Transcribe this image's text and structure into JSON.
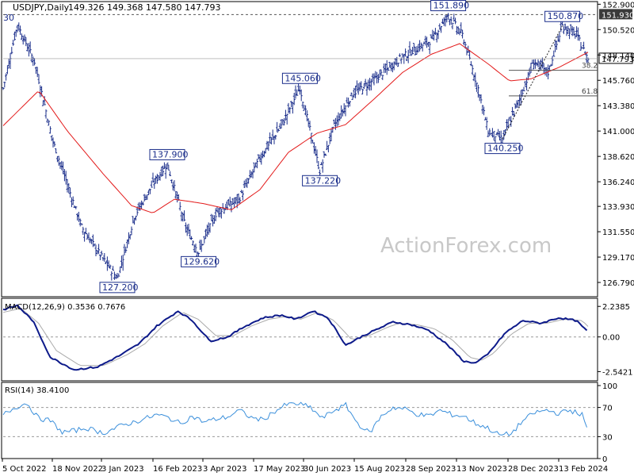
{
  "header": {
    "symbol_label": "USDJPY,Daily",
    "ohlc": "149.326 149.368 147.580 147.793",
    "left_cut_label": "30"
  },
  "watermark": "ActionForex.com",
  "colors": {
    "bars": "#1a2d8a",
    "ma": "#e31a1a",
    "macd": "#0d1a8a",
    "signal": "#aaaaaa",
    "rsi": "#3a8fdb",
    "grid": "#999999"
  },
  "chart_data": [
    {
      "type": "bar",
      "panel": "price",
      "title": "USDJPY,Daily",
      "ohlc_readout": [
        "149.326",
        "149.368",
        "147.580",
        "147.793"
      ],
      "y_ticks": [
        "152.900",
        "150.520",
        "148.140",
        "145.760",
        "143.380",
        "141.000",
        "138.620",
        "136.240",
        "133.930",
        "131.550",
        "129.170",
        "126.790"
      ],
      "y_range": [
        125.6,
        153.0
      ],
      "x_ticks": [
        "5 Oct 2022",
        "18 Nov 2022",
        "3 Jan 2023",
        "16 Feb 2023",
        "3 Apr 2023",
        "17 May 2023",
        "30 Jun 2023",
        "15 Aug 2023",
        "28 Sep 2023",
        "13 Nov 2023",
        "28 Dec 2023",
        "13 Feb 2024"
      ],
      "key_points": [
        {
          "i": 0,
          "v": 145.0
        },
        {
          "i": 10,
          "v": 151.0
        },
        {
          "i": 22,
          "v": 147.5
        },
        {
          "i": 35,
          "v": 140.0
        },
        {
          "i": 55,
          "v": 132.0
        },
        {
          "i": 70,
          "v": 129.0
        },
        {
          "i": 80,
          "v": 127.2
        },
        {
          "i": 92,
          "v": 133.0
        },
        {
          "i": 105,
          "v": 136.0
        },
        {
          "i": 115,
          "v": 137.9
        },
        {
          "i": 128,
          "v": 132.0
        },
        {
          "i": 137,
          "v": 129.62
        },
        {
          "i": 150,
          "v": 133.5
        },
        {
          "i": 165,
          "v": 134.5
        },
        {
          "i": 180,
          "v": 138.5
        },
        {
          "i": 195,
          "v": 141.5
        },
        {
          "i": 208,
          "v": 145.06
        },
        {
          "i": 222,
          "v": 137.22
        },
        {
          "i": 232,
          "v": 141.5
        },
        {
          "i": 245,
          "v": 144.5
        },
        {
          "i": 262,
          "v": 146.0
        },
        {
          "i": 280,
          "v": 148.0
        },
        {
          "i": 300,
          "v": 149.5
        },
        {
          "i": 312,
          "v": 151.89
        },
        {
          "i": 322,
          "v": 150.0
        },
        {
          "i": 333,
          "v": 145.0
        },
        {
          "i": 340,
          "v": 141.0
        },
        {
          "i": 350,
          "v": 140.25
        },
        {
          "i": 362,
          "v": 144.0
        },
        {
          "i": 372,
          "v": 147.5
        },
        {
          "i": 382,
          "v": 146.5
        },
        {
          "i": 392,
          "v": 150.87
        },
        {
          "i": 402,
          "v": 150.0
        },
        {
          "i": 410,
          "v": 147.79
        }
      ],
      "ma_points": [
        {
          "i": 0,
          "v": 141.5
        },
        {
          "i": 25,
          "v": 144.8
        },
        {
          "i": 45,
          "v": 141.0
        },
        {
          "i": 70,
          "v": 137.0
        },
        {
          "i": 90,
          "v": 134.0
        },
        {
          "i": 105,
          "v": 133.3
        },
        {
          "i": 120,
          "v": 134.6
        },
        {
          "i": 140,
          "v": 134.2
        },
        {
          "i": 160,
          "v": 133.6
        },
        {
          "i": 180,
          "v": 135.5
        },
        {
          "i": 200,
          "v": 139.0
        },
        {
          "i": 220,
          "v": 140.8
        },
        {
          "i": 240,
          "v": 141.6
        },
        {
          "i": 260,
          "v": 144.0
        },
        {
          "i": 280,
          "v": 146.5
        },
        {
          "i": 300,
          "v": 148.2
        },
        {
          "i": 320,
          "v": 149.2
        },
        {
          "i": 340,
          "v": 147.3
        },
        {
          "i": 355,
          "v": 145.7
        },
        {
          "i": 370,
          "v": 145.9
        },
        {
          "i": 390,
          "v": 147.0
        },
        {
          "i": 410,
          "v": 148.4
        }
      ],
      "labels": [
        "151.890",
        "150.870",
        "145.060",
        "140.250",
        "137.900",
        "137.220",
        "129.620",
        "127.200"
      ],
      "last_price": "147.793",
      "high_line": "151.930",
      "fib_levels": [
        {
          "name": "38.2",
          "value": 146.7
        },
        {
          "name": "61.8",
          "value": 144.3
        }
      ],
      "trendline": [
        {
          "i": 350,
          "v": 140.25
        },
        {
          "i": 392,
          "v": 150.87
        }
      ]
    },
    {
      "type": "line",
      "panel": "macd",
      "title": "MACD(12,26,9) 0.3536 0.7676",
      "y_ticks": [
        "2.2385",
        "0.00",
        "-2.5421"
      ],
      "y_range": [
        -3.1,
        2.6
      ],
      "series": [
        {
          "values": [
            {
              "i": 0,
              "v": 2.0
            },
            {
              "i": 12,
              "v": 2.3
            },
            {
              "i": 25,
              "v": 1.2
            },
            {
              "i": 40,
              "v": -1.5
            },
            {
              "i": 60,
              "v": -2.4
            },
            {
              "i": 80,
              "v": -2.2
            },
            {
              "i": 100,
              "v": -1.3
            },
            {
              "i": 115,
              "v": -0.5
            },
            {
              "i": 130,
              "v": 0.8
            },
            {
              "i": 148,
              "v": 1.9
            },
            {
              "i": 160,
              "v": 1.2
            },
            {
              "i": 175,
              "v": -0.3
            },
            {
              "i": 190,
              "v": 0.0
            },
            {
              "i": 205,
              "v": 0.8
            },
            {
              "i": 220,
              "v": 1.4
            },
            {
              "i": 235,
              "v": 1.6
            },
            {
              "i": 248,
              "v": 1.3
            },
            {
              "i": 262,
              "v": 1.9
            },
            {
              "i": 275,
              "v": 1.4
            },
            {
              "i": 290,
              "v": -0.6
            },
            {
              "i": 305,
              "v": 0.1
            },
            {
              "i": 320,
              "v": 0.7
            },
            {
              "i": 330,
              "v": 1.1
            },
            {
              "i": 345,
              "v": 0.9
            },
            {
              "i": 360,
              "v": 0.5
            },
            {
              "i": 375,
              "v": -0.5
            },
            {
              "i": 390,
              "v": -1.8
            },
            {
              "i": 400,
              "v": -1.9
            },
            {
              "i": 410,
              "v": -1.3
            },
            {
              "i": 425,
              "v": 0.3
            },
            {
              "i": 440,
              "v": 1.2
            },
            {
              "i": 455,
              "v": 1.0
            },
            {
              "i": 470,
              "v": 1.4
            },
            {
              "i": 485,
              "v": 1.2
            },
            {
              "i": 495,
              "v": 0.35
            }
          ]
        },
        {
          "values": [
            {
              "i": 0,
              "v": 1.8
            },
            {
              "i": 15,
              "v": 2.1
            },
            {
              "i": 30,
              "v": 1.0
            },
            {
              "i": 45,
              "v": -1.0
            },
            {
              "i": 65,
              "v": -2.1
            },
            {
              "i": 85,
              "v": -2.1
            },
            {
              "i": 105,
              "v": -1.3
            },
            {
              "i": 120,
              "v": -0.5
            },
            {
              "i": 135,
              "v": 0.8
            },
            {
              "i": 152,
              "v": 1.8
            },
            {
              "i": 165,
              "v": 1.3
            },
            {
              "i": 180,
              "v": 0.1
            },
            {
              "i": 195,
              "v": 0.1
            },
            {
              "i": 210,
              "v": 0.8
            },
            {
              "i": 225,
              "v": 1.3
            },
            {
              "i": 240,
              "v": 1.5
            },
            {
              "i": 252,
              "v": 1.3
            },
            {
              "i": 266,
              "v": 1.8
            },
            {
              "i": 280,
              "v": 1.2
            },
            {
              "i": 295,
              "v": -0.2
            },
            {
              "i": 310,
              "v": 0.1
            },
            {
              "i": 325,
              "v": 0.7
            },
            {
              "i": 335,
              "v": 1.0
            },
            {
              "i": 350,
              "v": 0.9
            },
            {
              "i": 365,
              "v": 0.6
            },
            {
              "i": 380,
              "v": -0.2
            },
            {
              "i": 395,
              "v": -1.5
            },
            {
              "i": 405,
              "v": -1.7
            },
            {
              "i": 415,
              "v": -1.2
            },
            {
              "i": 430,
              "v": 0.2
            },
            {
              "i": 445,
              "v": 1.0
            },
            {
              "i": 460,
              "v": 1.0
            },
            {
              "i": 475,
              "v": 1.3
            },
            {
              "i": 490,
              "v": 1.2
            },
            {
              "i": 495,
              "v": 0.77
            }
          ]
        }
      ]
    },
    {
      "type": "line",
      "panel": "rsi",
      "title": "RSI(14) 38.4100",
      "y_ticks": [
        "100",
        "70",
        "30",
        "0"
      ],
      "y_range": [
        0,
        100
      ],
      "levels": [
        70,
        30
      ],
      "series": [
        {
          "values": [
            {
              "i": 0,
              "v": 60
            },
            {
              "i": 10,
              "v": 70
            },
            {
              "i": 20,
              "v": 76
            },
            {
              "i": 30,
              "v": 55
            },
            {
              "i": 40,
              "v": 52
            },
            {
              "i": 50,
              "v": 36
            },
            {
              "i": 60,
              "v": 38
            },
            {
              "i": 70,
              "v": 42
            },
            {
              "i": 85,
              "v": 35
            },
            {
              "i": 100,
              "v": 45
            },
            {
              "i": 115,
              "v": 52
            },
            {
              "i": 130,
              "v": 60
            },
            {
              "i": 140,
              "v": 56
            },
            {
              "i": 150,
              "v": 48
            },
            {
              "i": 160,
              "v": 58
            },
            {
              "i": 170,
              "v": 50
            },
            {
              "i": 180,
              "v": 54
            },
            {
              "i": 190,
              "v": 57
            },
            {
              "i": 200,
              "v": 66
            },
            {
              "i": 210,
              "v": 56
            },
            {
              "i": 220,
              "v": 53
            },
            {
              "i": 230,
              "v": 65
            },
            {
              "i": 240,
              "v": 74
            },
            {
              "i": 250,
              "v": 75
            },
            {
              "i": 260,
              "v": 70
            },
            {
              "i": 270,
              "v": 55
            },
            {
              "i": 280,
              "v": 66
            },
            {
              "i": 290,
              "v": 73
            },
            {
              "i": 300,
              "v": 48
            },
            {
              "i": 310,
              "v": 35
            },
            {
              "i": 320,
              "v": 58
            },
            {
              "i": 330,
              "v": 70
            },
            {
              "i": 340,
              "v": 68
            },
            {
              "i": 350,
              "v": 61
            },
            {
              "i": 360,
              "v": 58
            },
            {
              "i": 370,
              "v": 66
            },
            {
              "i": 380,
              "v": 60
            },
            {
              "i": 390,
              "v": 58
            },
            {
              "i": 400,
              "v": 48
            },
            {
              "i": 410,
              "v": 42
            },
            {
              "i": 420,
              "v": 32
            },
            {
              "i": 430,
              "v": 34
            },
            {
              "i": 440,
              "v": 52
            },
            {
              "i": 450,
              "v": 63
            },
            {
              "i": 460,
              "v": 66
            },
            {
              "i": 470,
              "v": 62
            },
            {
              "i": 480,
              "v": 66
            },
            {
              "i": 490,
              "v": 60
            },
            {
              "i": 495,
              "v": 38
            }
          ]
        }
      ]
    }
  ]
}
